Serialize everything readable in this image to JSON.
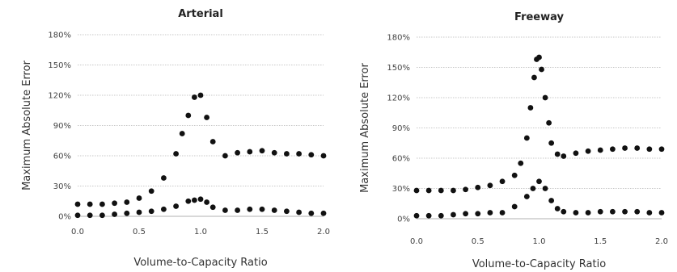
{
  "chart_data": [
    {
      "type": "scatter",
      "title": "Arterial",
      "xlabel": "Volume-to-Capacity Ratio",
      "ylabel": "Maximum Absolute Error",
      "xlim": [
        0,
        2
      ],
      "ylim": [
        0,
        180
      ],
      "xticks": [
        "0.0",
        "0.5",
        "1.0",
        "1.5",
        "2.0"
      ],
      "yticks": [
        "0%",
        "30%",
        "60%",
        "90%",
        "120%",
        "150%",
        "180%"
      ],
      "grid": "horizontal",
      "series": [
        {
          "x": [
            0.0,
            0.1,
            0.2,
            0.3,
            0.4,
            0.5,
            0.6,
            0.7,
            0.8,
            0.85,
            0.9,
            0.95,
            1.0,
            1.05,
            1.1,
            1.2,
            1.3,
            1.4,
            1.5,
            1.6,
            1.7,
            1.8,
            1.9,
            2.0
          ],
          "values": [
            12,
            12,
            12,
            13,
            14,
            18,
            25,
            38,
            62,
            82,
            100,
            118,
            120,
            98,
            74,
            60,
            63,
            64,
            65,
            63,
            62,
            62,
            61,
            60
          ]
        },
        {
          "x": [
            0.0,
            0.1,
            0.2,
            0.3,
            0.4,
            0.5,
            0.6,
            0.7,
            0.8,
            0.9,
            0.95,
            1.0,
            1.05,
            1.1,
            1.2,
            1.3,
            1.4,
            1.5,
            1.6,
            1.7,
            1.8,
            1.9,
            2.0
          ],
          "values": [
            1,
            1,
            1,
            2,
            3,
            4,
            5,
            7,
            10,
            15,
            16,
            17,
            14,
            9,
            6,
            6,
            7,
            7,
            6,
            5,
            4,
            3,
            3
          ]
        }
      ]
    },
    {
      "type": "scatter",
      "title": "Freeway",
      "xlabel": "Volume-to-Capacity Ratio",
      "ylabel": "Maximum Absolute Error",
      "xlim": [
        0,
        2
      ],
      "ylim": [
        0,
        180
      ],
      "xticks": [
        "0.0",
        "0.5",
        "1.0",
        "1.5",
        "2.0"
      ],
      "yticks": [
        "0%",
        "30%",
        "60%",
        "90%",
        "120%",
        "150%",
        "180%"
      ],
      "grid": "horizontal",
      "series": [
        {
          "x": [
            0.0,
            0.1,
            0.2,
            0.3,
            0.4,
            0.5,
            0.6,
            0.7,
            0.8,
            0.85,
            0.9,
            0.93,
            0.96,
            0.98,
            1.0,
            1.02,
            1.05,
            1.08,
            1.1,
            1.15,
            1.2,
            1.3,
            1.4,
            1.5,
            1.6,
            1.7,
            1.8,
            1.9,
            2.0
          ],
          "values": [
            28,
            28,
            28,
            28,
            29,
            31,
            33,
            37,
            43,
            55,
            80,
            110,
            140,
            158,
            160,
            148,
            120,
            95,
            75,
            64,
            62,
            65,
            67,
            68,
            69,
            70,
            70,
            69,
            69
          ]
        },
        {
          "x": [
            0.0,
            0.1,
            0.2,
            0.3,
            0.4,
            0.5,
            0.6,
            0.7,
            0.8,
            0.9,
            0.95,
            1.0,
            1.05,
            1.1,
            1.15,
            1.2,
            1.3,
            1.4,
            1.5,
            1.6,
            1.7,
            1.8,
            1.9,
            2.0
          ],
          "values": [
            3,
            3,
            3,
            4,
            5,
            5,
            6,
            6,
            12,
            22,
            30,
            37,
            30,
            18,
            10,
            7,
            6,
            6,
            7,
            7,
            7,
            7,
            6,
            6
          ]
        }
      ]
    }
  ]
}
